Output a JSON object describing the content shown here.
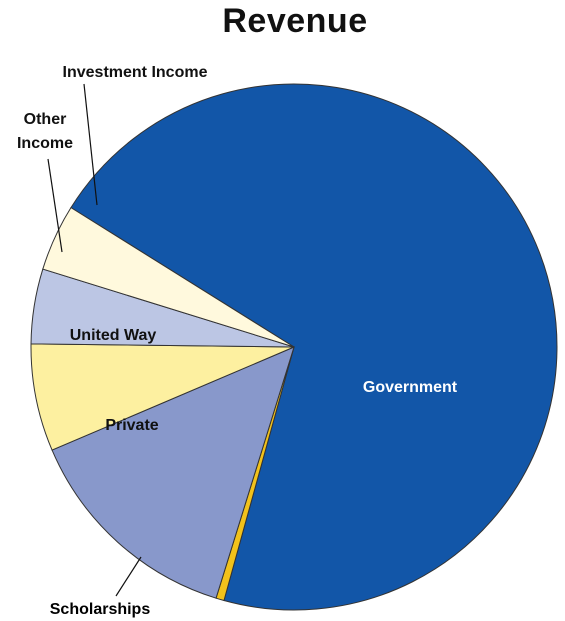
{
  "chart_data": {
    "type": "pie",
    "title": "Revenue",
    "start_angle_deg": 212,
    "direction": "clockwise",
    "slices": [
      {
        "name": "Government",
        "value": 70.4,
        "color": "#1256a8",
        "label_color": "#ffffff",
        "label_lines": [
          "Government"
        ]
      },
      {
        "name": "Scholarships",
        "value": 0.5,
        "color": "#f2c21b",
        "label_color": "#000000",
        "label_lines": [
          "Scholarships"
        ]
      },
      {
        "name": "Private",
        "value": 13.8,
        "color": "#8898cb",
        "label_color": "#111111",
        "label_lines": [
          "Private"
        ]
      },
      {
        "name": "United Way",
        "value": 6.6,
        "color": "#fdf0a0",
        "label_color": "#111111",
        "label_lines": [
          "United Way"
        ]
      },
      {
        "name": "Other Income",
        "value": 4.6,
        "color": "#bcc6e4",
        "label_color": "#111111",
        "label_lines": [
          "Other",
          "Income"
        ]
      },
      {
        "name": "Investment Income",
        "value": 4.1,
        "color": "#fff9dd",
        "label_color": "#111111",
        "label_lines": [
          "Investment Income"
        ]
      }
    ]
  }
}
